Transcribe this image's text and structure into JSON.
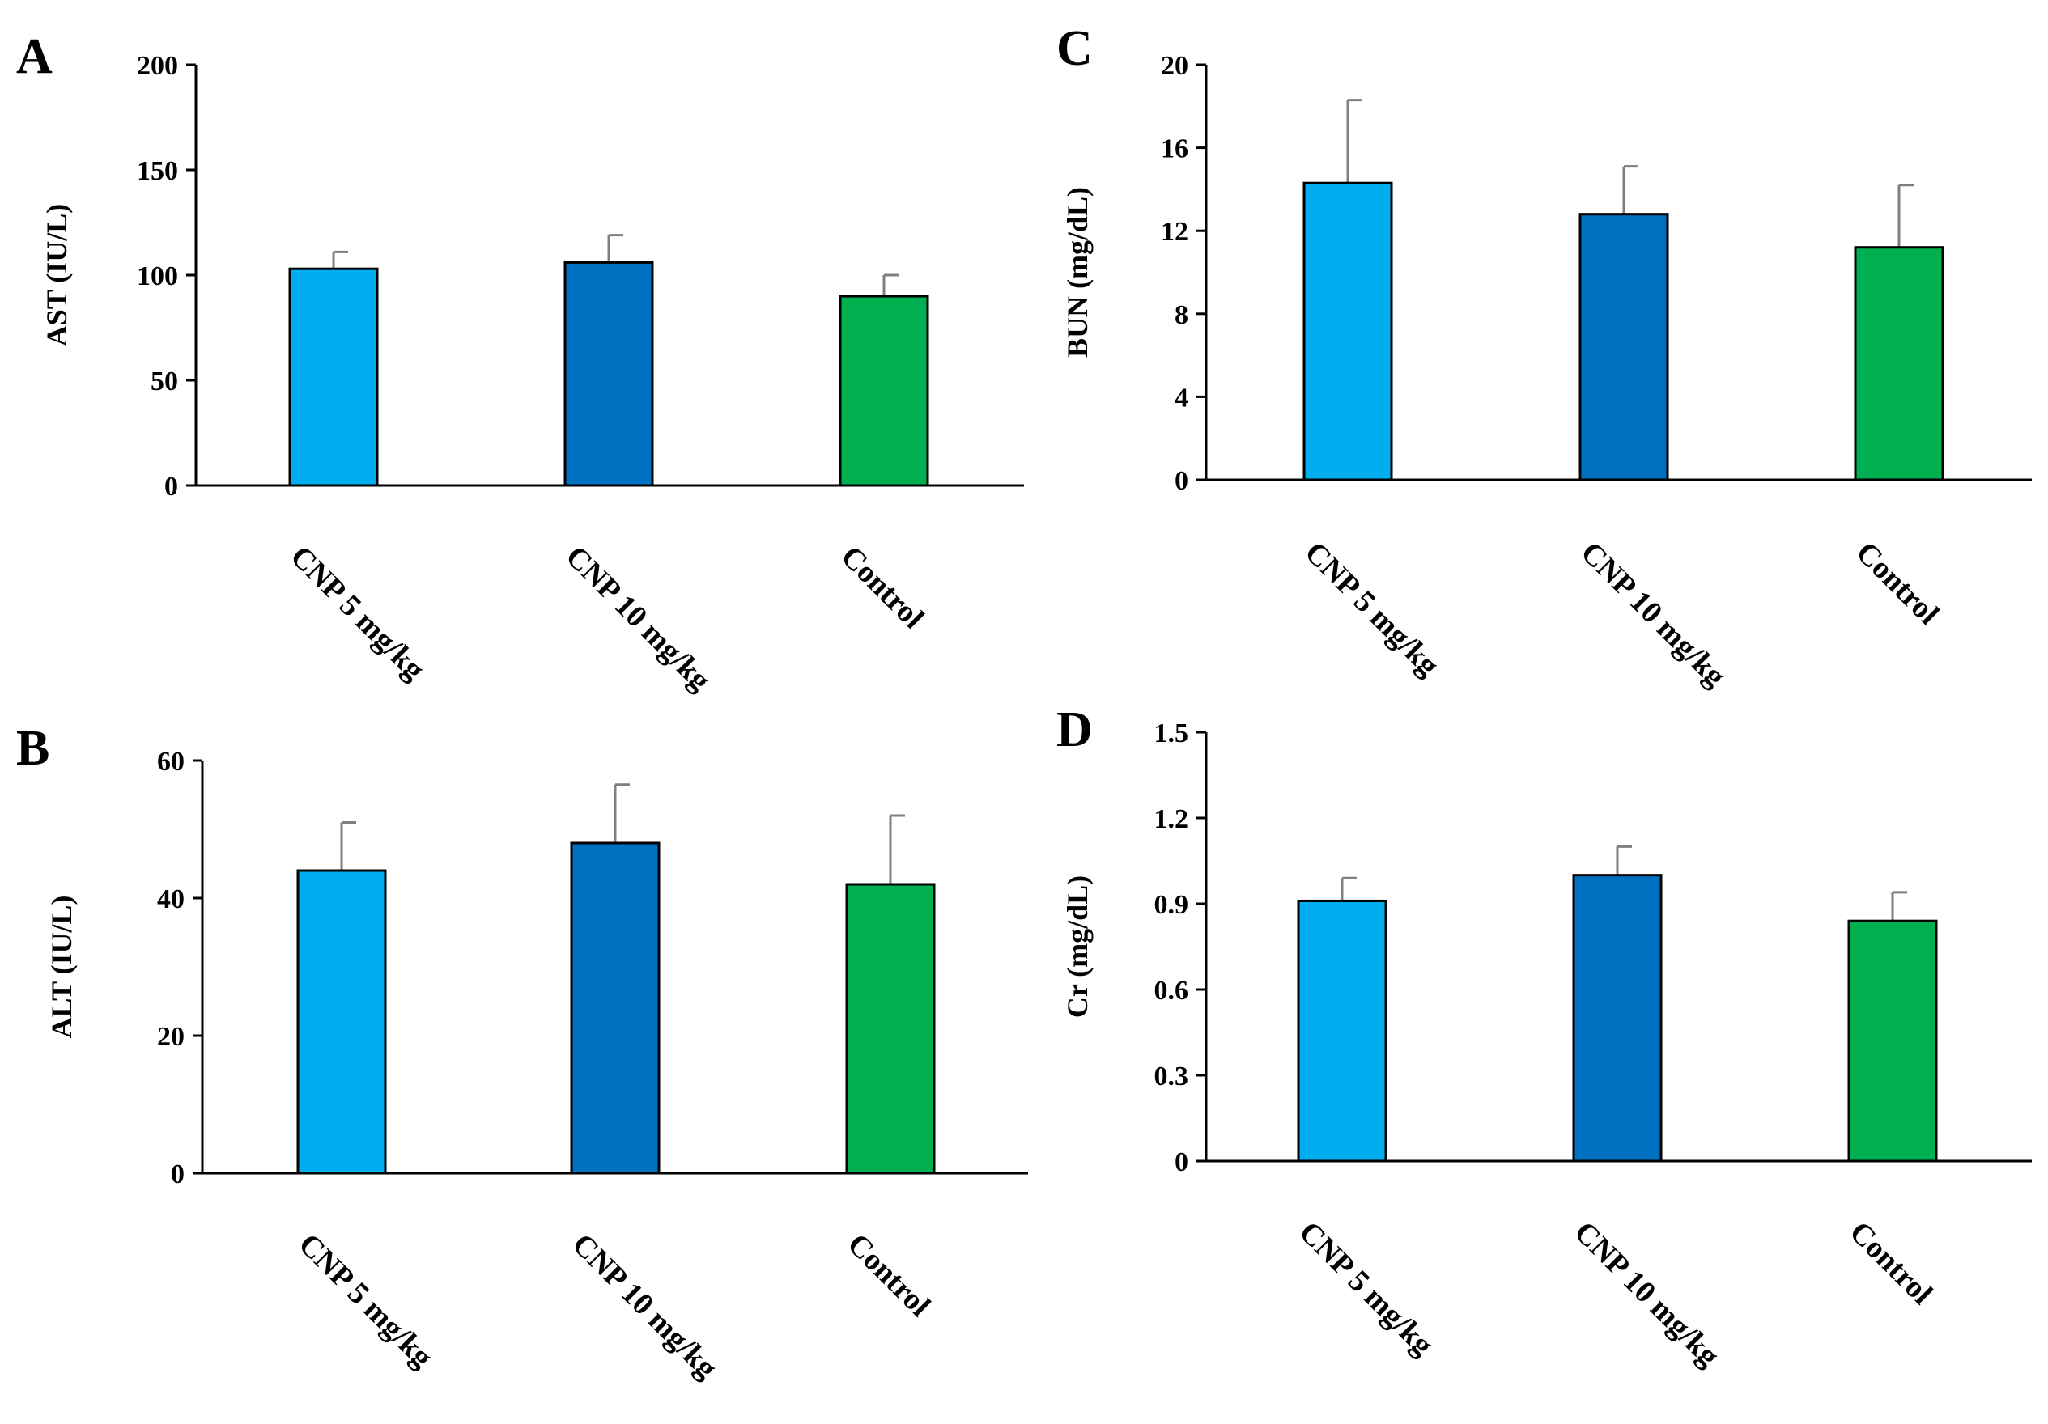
{
  "colors": {
    "bar_light_blue": "#00aeef",
    "bar_dark_blue": "#0070c0",
    "bar_green": "#00b050",
    "axis": "#000000",
    "error_bar": "#7f7f7f"
  },
  "chart_data": [
    {
      "type": "bar",
      "panel": "A",
      "categories": [
        "CNP 5 mg/kg",
        "CNP 10 mg/kg",
        "Control"
      ],
      "values": [
        103,
        106,
        90
      ],
      "errors": [
        8,
        13,
        10
      ],
      "ylabel": "AST  (IU/L)",
      "ylim": [
        0,
        200
      ],
      "yticks": [
        "0",
        "50",
        "100",
        "150",
        "200"
      ],
      "grid": false,
      "legend": "none"
    },
    {
      "type": "bar",
      "panel": "B",
      "categories": [
        "CNP 5 mg/kg",
        "CNP 10 mg/kg",
        "Control"
      ],
      "values": [
        44,
        48,
        42
      ],
      "errors": [
        7,
        8.5,
        10
      ],
      "ylabel": "ALT  (IU/L)",
      "ylim": [
        0,
        60
      ],
      "yticks": [
        "0",
        "20",
        "40",
        "60"
      ],
      "grid": false,
      "legend": "none"
    },
    {
      "type": "bar",
      "panel": "C",
      "categories": [
        "CNP 5 mg/kg",
        "CNP 10 mg/kg",
        "Control"
      ],
      "values": [
        14.3,
        12.8,
        11.2
      ],
      "errors": [
        4.0,
        2.3,
        3.0
      ],
      "ylabel": "BUN  (mg/dL)",
      "ylim": [
        0,
        20
      ],
      "yticks": [
        "0",
        "4",
        "8",
        "12",
        "16",
        "20"
      ],
      "grid": false,
      "legend": "none"
    },
    {
      "type": "bar",
      "panel": "D",
      "categories": [
        "CNP 5 mg/kg",
        "CNP 10 mg/kg",
        "Control"
      ],
      "values": [
        0.91,
        1.0,
        0.84
      ],
      "errors": [
        0.08,
        0.1,
        0.1
      ],
      "ylabel": "Cr  (mg/dL)",
      "ylim": [
        0,
        1.5
      ],
      "yticks": [
        "0",
        "0.3",
        "0.6",
        "0.9",
        "1.2",
        "1.5"
      ],
      "grid": false,
      "legend": "none"
    }
  ]
}
